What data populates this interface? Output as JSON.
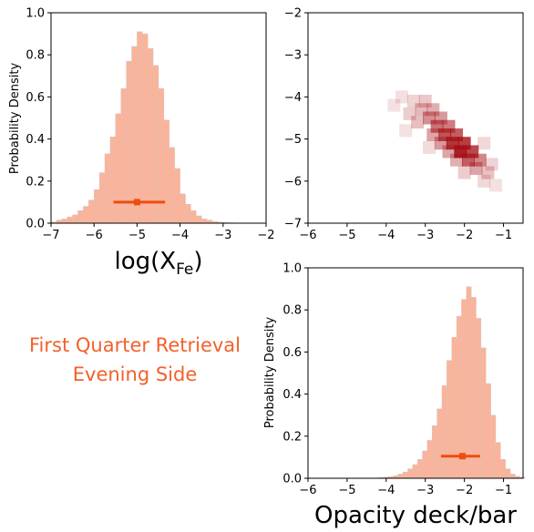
{
  "annotation": {
    "line1": "First Quarter Retrieval",
    "line2": "Evening Side",
    "color": "#f4602a"
  },
  "colors": {
    "hist_fill": "#fbb39a",
    "hist_edge": "#c8c8c8",
    "errorbar": "#ee4d10",
    "density": "#a50f15"
  },
  "chart_data": [
    {
      "id": "fe",
      "type": "bar",
      "title": "",
      "xlabel": "log(X_Fe)",
      "xlabel_main": "log(X",
      "xlabel_sub": "Fe",
      "xlabel_end": ")",
      "ylabel": "Probability Density",
      "xlim": [
        -7,
        -2
      ],
      "ylim": [
        0,
        1.0
      ],
      "xticks": [
        "−7",
        "−6",
        "−5",
        "−4",
        "−3",
        "−2"
      ],
      "yticks": [
        "0.0",
        "0.2",
        "0.4",
        "0.6",
        "0.8",
        "1.0"
      ],
      "bin_start": -7.0,
      "bin_width": 0.125,
      "values": [
        0.005,
        0.015,
        0.02,
        0.03,
        0.04,
        0.06,
        0.08,
        0.11,
        0.16,
        0.24,
        0.33,
        0.41,
        0.52,
        0.64,
        0.77,
        0.84,
        0.91,
        0.9,
        0.83,
        0.75,
        0.64,
        0.49,
        0.36,
        0.26,
        0.14,
        0.09,
        0.06,
        0.035,
        0.02,
        0.015,
        0.008,
        0.005,
        0.003,
        0.002
      ],
      "errorbar": {
        "center": -5.0,
        "low": -5.55,
        "high": -4.35,
        "y": 0.1
      }
    },
    {
      "id": "joint",
      "type": "heatmap",
      "title": "",
      "xlim": [
        -6,
        -0.5
      ],
      "ylim": [
        -7,
        -2
      ],
      "xticks": [
        "−6",
        "−5",
        "−4",
        "−3",
        "−2",
        "−1"
      ],
      "yticks": [
        "−2",
        "−3",
        "−4",
        "−5",
        "−6",
        "−7"
      ],
      "cells": [
        {
          "x": -3.3,
          "y": -4.1,
          "v": 0.12
        },
        {
          "x": -3.0,
          "y": -4.1,
          "v": 0.18
        },
        {
          "x": -3.1,
          "y": -4.3,
          "v": 0.25
        },
        {
          "x": -2.8,
          "y": -4.3,
          "v": 0.3
        },
        {
          "x": -3.4,
          "y": -4.4,
          "v": 0.15
        },
        {
          "x": -2.9,
          "y": -4.5,
          "v": 0.45
        },
        {
          "x": -2.6,
          "y": -4.5,
          "v": 0.4
        },
        {
          "x": -3.2,
          "y": -4.6,
          "v": 0.22
        },
        {
          "x": -2.7,
          "y": -4.7,
          "v": 0.6
        },
        {
          "x": -2.4,
          "y": -4.7,
          "v": 0.55
        },
        {
          "x": -2.5,
          "y": -4.9,
          "v": 0.75
        },
        {
          "x": -2.2,
          "y": -4.9,
          "v": 0.7
        },
        {
          "x": -2.8,
          "y": -4.9,
          "v": 0.35
        },
        {
          "x": -2.3,
          "y": -5.1,
          "v": 0.9
        },
        {
          "x": -2.0,
          "y": -5.1,
          "v": 0.85
        },
        {
          "x": -2.6,
          "y": -5.1,
          "v": 0.4
        },
        {
          "x": -2.1,
          "y": -5.3,
          "v": 1.0
        },
        {
          "x": -1.8,
          "y": -5.3,
          "v": 0.8
        },
        {
          "x": -2.4,
          "y": -5.3,
          "v": 0.35
        },
        {
          "x": -1.9,
          "y": -5.5,
          "v": 0.7
        },
        {
          "x": -1.6,
          "y": -5.5,
          "v": 0.5
        },
        {
          "x": -2.2,
          "y": -5.5,
          "v": 0.3
        },
        {
          "x": -1.7,
          "y": -5.7,
          "v": 0.35
        },
        {
          "x": -1.4,
          "y": -5.8,
          "v": 0.2
        },
        {
          "x": -2.0,
          "y": -5.8,
          "v": 0.15
        },
        {
          "x": -1.5,
          "y": -6.0,
          "v": 0.1
        },
        {
          "x": -3.6,
          "y": -4.0,
          "v": 0.06
        },
        {
          "x": -3.8,
          "y": -4.2,
          "v": 0.05
        },
        {
          "x": -1.2,
          "y": -6.1,
          "v": 0.06
        },
        {
          "x": -2.9,
          "y": -5.2,
          "v": 0.08
        },
        {
          "x": -1.5,
          "y": -5.1,
          "v": 0.1
        },
        {
          "x": -3.5,
          "y": -4.8,
          "v": 0.06
        },
        {
          "x": -1.3,
          "y": -5.6,
          "v": 0.12
        }
      ]
    },
    {
      "id": "deck",
      "type": "bar",
      "title": "",
      "xlabel": "Opacity deck/bar",
      "ylabel": "Probability Density",
      "xlim": [
        -6,
        -0.5
      ],
      "ylim": [
        0,
        1.0
      ],
      "xticks": [
        "−6",
        "−5",
        "−4",
        "−3",
        "−2",
        "−1"
      ],
      "yticks": [
        "0.0",
        "0.2",
        "0.4",
        "0.6",
        "0.8",
        "1.0"
      ],
      "bin_start": -4.2,
      "bin_width": 0.125,
      "values": [
        0.003,
        0.005,
        0.008,
        0.012,
        0.02,
        0.03,
        0.045,
        0.065,
        0.09,
        0.13,
        0.18,
        0.25,
        0.33,
        0.44,
        0.56,
        0.67,
        0.77,
        0.85,
        0.91,
        0.86,
        0.76,
        0.62,
        0.45,
        0.3,
        0.17,
        0.09,
        0.045,
        0.02,
        0.01,
        0.005
      ],
      "errorbar": {
        "center": -2.05,
        "low": -2.6,
        "high": -1.6,
        "y": 0.105
      }
    }
  ]
}
